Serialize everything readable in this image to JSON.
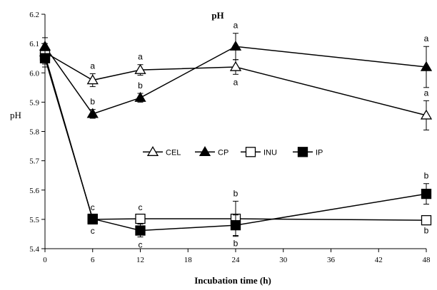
{
  "chart_data": {
    "type": "line",
    "title": "pH",
    "xlabel": "Incubation time (h)",
    "ylabel": "pH",
    "xlim": [
      0,
      48
    ],
    "ylim": [
      5.4,
      6.2
    ],
    "xticks": [
      0,
      6,
      12,
      18,
      24,
      30,
      36,
      42,
      48
    ],
    "yticks": [
      5.4,
      5.5,
      5.6,
      5.7,
      5.8,
      5.9,
      6.0,
      6.1,
      6.2
    ],
    "ytick_labels": [
      "5.4",
      "5.5",
      "5.6",
      "5.7",
      "5.8",
      "5.9",
      "6.0",
      "6.1",
      "6.2"
    ],
    "grid": false,
    "legend_position": "center",
    "x": [
      0,
      6,
      12,
      24,
      48
    ],
    "series": [
      {
        "name": "CEL",
        "marker": "open-triangle",
        "values": [
          6.07,
          5.975,
          6.01,
          6.02,
          5.855
        ],
        "errors": [
          0.03,
          0.022,
          0.018,
          0.025,
          0.05
        ],
        "letters": [
          "",
          "a",
          "a",
          "a",
          "a"
        ],
        "letter_side": [
          "",
          "above",
          "above",
          "below",
          "above"
        ]
      },
      {
        "name": "CP",
        "marker": "filled-triangle",
        "values": [
          6.09,
          5.86,
          5.915,
          6.09,
          6.02
        ],
        "errors": [
          0.03,
          0.015,
          0.015,
          0.045,
          0.07
        ],
        "letters": [
          "",
          "b",
          "b",
          "a",
          "a"
        ],
        "letter_side": [
          "",
          "above",
          "above",
          "above",
          "above"
        ]
      },
      {
        "name": "INU",
        "marker": "open-square",
        "values": [
          6.06,
          5.5,
          5.502,
          5.502,
          5.497
        ],
        "errors": [
          0.03,
          0.012,
          0.012,
          0.06,
          0.008
        ],
        "letters": [
          "",
          "c",
          "c",
          "b",
          "b"
        ],
        "letter_side": [
          "",
          "below",
          "above",
          "above",
          "below"
        ]
      },
      {
        "name": "IP",
        "marker": "filled-square",
        "values": [
          6.05,
          5.502,
          5.462,
          5.48,
          5.587
        ],
        "errors": [
          0.03,
          0.012,
          0.022,
          0.035,
          0.035
        ],
        "letters": [
          "",
          "c",
          "c",
          "b",
          "b"
        ],
        "letter_side": [
          "",
          "above",
          "below",
          "below",
          "above"
        ]
      }
    ],
    "colors": {
      "line": "#000000",
      "background": "#ffffff"
    }
  }
}
